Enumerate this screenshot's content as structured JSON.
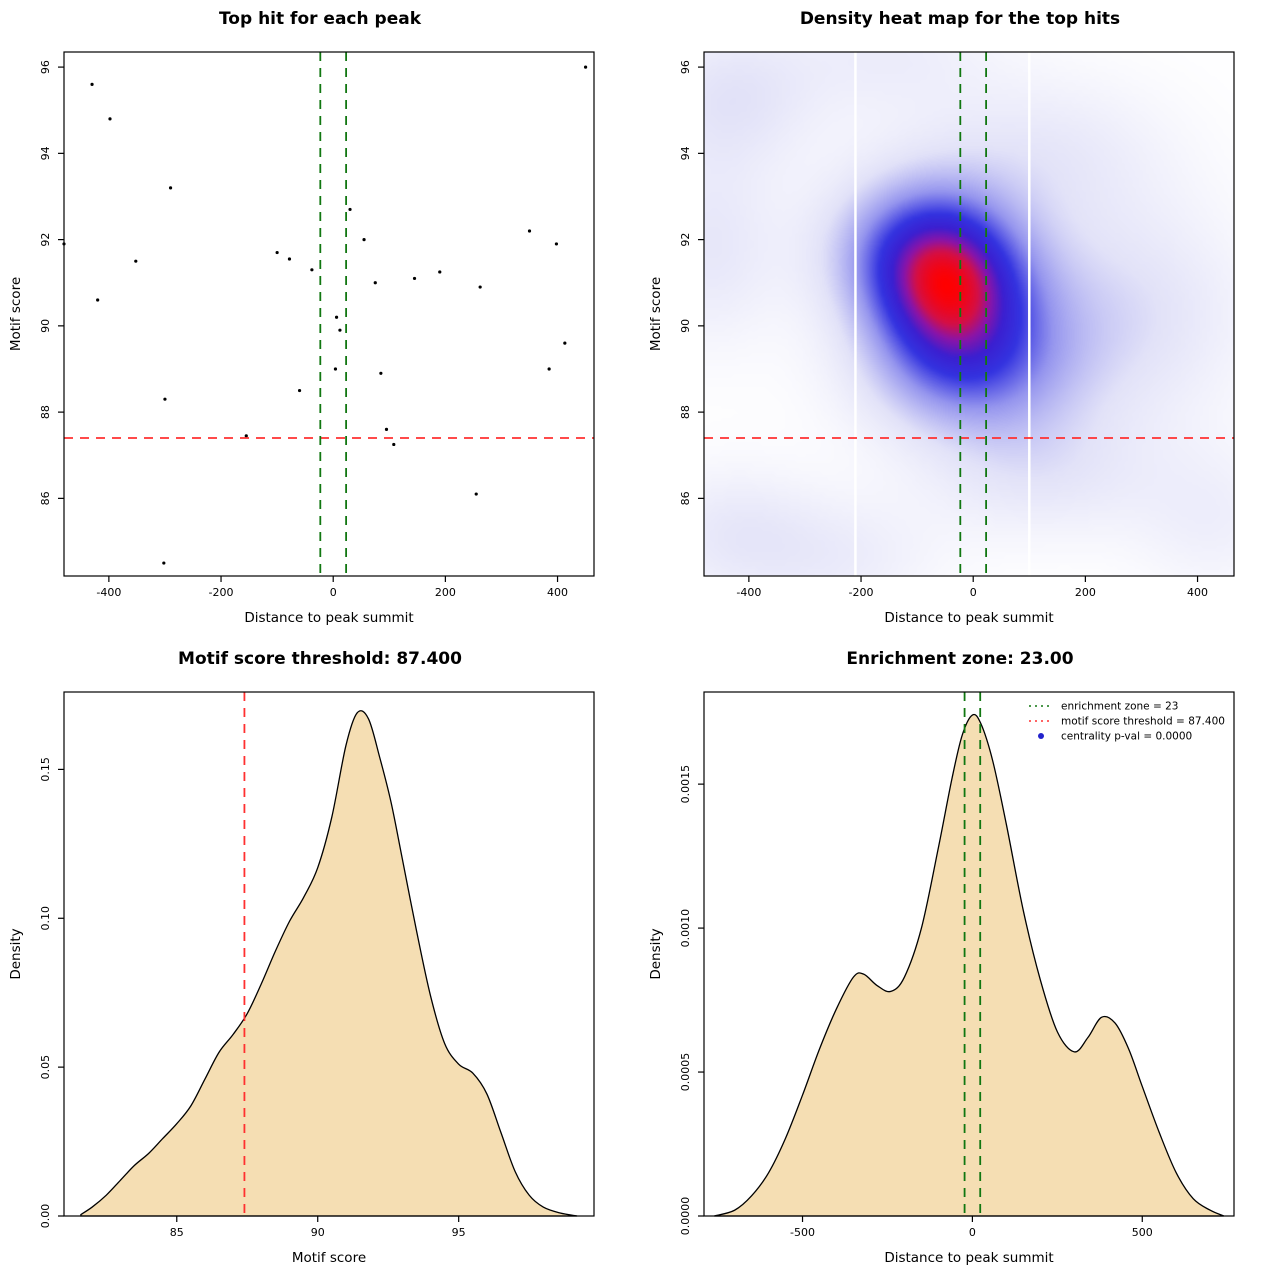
{
  "page": {
    "background": "#ffffff"
  },
  "chart_data": [
    {
      "id": "top-hit-scatter",
      "type": "scatter",
      "title": "Top hit for each peak",
      "xlabel": "Distance to peak summit",
      "ylabel": "Motif score",
      "xlim": [
        -480,
        465
      ],
      "ylim": [
        84.2,
        96.35
      ],
      "xticks": [
        -400,
        -200,
        0,
        200,
        400
      ],
      "yticks": [
        86,
        88,
        90,
        92,
        94,
        96
      ],
      "grid": false,
      "point_color": "#000000",
      "points": [
        [
          -430,
          95.6
        ],
        [
          -398,
          94.8
        ],
        [
          -480,
          91.9
        ],
        [
          -420,
          90.6
        ],
        [
          -352,
          91.5
        ],
        [
          -290,
          93.2
        ],
        [
          -300,
          88.3
        ],
        [
          -302,
          84.5
        ],
        [
          -155,
          87.45
        ],
        [
          -100,
          91.7
        ],
        [
          -78,
          91.55
        ],
        [
          -60,
          88.5
        ],
        [
          -38,
          91.3
        ],
        [
          6,
          90.2
        ],
        [
          12,
          89.9
        ],
        [
          4,
          89.0
        ],
        [
          30,
          92.7
        ],
        [
          55,
          92.0
        ],
        [
          75,
          91.0
        ],
        [
          85,
          88.9
        ],
        [
          95,
          87.6
        ],
        [
          108,
          87.25
        ],
        [
          145,
          91.1
        ],
        [
          190,
          91.25
        ],
        [
          255,
          86.1
        ],
        [
          262,
          90.9
        ],
        [
          350,
          92.2
        ],
        [
          385,
          89.0
        ],
        [
          398,
          91.9
        ],
        [
          413,
          89.6
        ],
        [
          450,
          96.0
        ]
      ],
      "hline": {
        "y": 87.4,
        "color": "#ff3030"
      },
      "vlines": {
        "x": [
          -23,
          23
        ],
        "color": "#117711"
      }
    },
    {
      "id": "density-heatmap",
      "type": "heatmap",
      "title": "Density heat map for the top hits",
      "xlabel": "Distance to peak summit",
      "ylabel": "Motif score",
      "xlim": [
        -480,
        465
      ],
      "ylim": [
        84.2,
        96.35
      ],
      "xticks": [
        -400,
        -200,
        0,
        200,
        400
      ],
      "yticks": [
        86,
        88,
        90,
        92,
        94,
        96
      ],
      "grid": false,
      "colorscale": [
        {
          "t": 0.0,
          "c": "#ffffff"
        },
        {
          "t": 0.2,
          "c": "#e2e2f8"
        },
        {
          "t": 0.42,
          "c": "#9595ee"
        },
        {
          "t": 0.6,
          "c": "#3333e0"
        },
        {
          "t": 0.72,
          "c": "#3b1fd0"
        },
        {
          "t": 0.82,
          "c": "#8a14a8"
        },
        {
          "t": 0.9,
          "c": "#d40f45"
        },
        {
          "t": 1.0,
          "c": "#ff0000"
        }
      ],
      "kernels": [
        {
          "x": -45,
          "y": 91.0,
          "sx": 95,
          "sy": 1.35,
          "a": 1.0
        },
        {
          "x": 20,
          "y": 90.2,
          "sx": 130,
          "sy": 1.6,
          "a": 0.55
        },
        {
          "x": -130,
          "y": 91.8,
          "sx": 110,
          "sy": 1.3,
          "a": 0.6
        },
        {
          "x": -10,
          "y": 88.8,
          "sx": 140,
          "sy": 1.1,
          "a": 0.45
        },
        {
          "x": -430,
          "y": 95.3,
          "sx": 110,
          "sy": 1.2,
          "a": 0.34
        },
        {
          "x": -470,
          "y": 91.8,
          "sx": 90,
          "sy": 1.6,
          "a": 0.3
        },
        {
          "x": -430,
          "y": 85.2,
          "sx": 110,
          "sy": 1.1,
          "a": 0.28
        },
        {
          "x": -230,
          "y": 84.6,
          "sx": 120,
          "sy": 1.0,
          "a": 0.22
        },
        {
          "x": 120,
          "y": 86.6,
          "sx": 150,
          "sy": 1.1,
          "a": 0.3
        },
        {
          "x": 300,
          "y": 90.3,
          "sx": 140,
          "sy": 1.8,
          "a": 0.34
        },
        {
          "x": 120,
          "y": 94.0,
          "sx": 160,
          "sy": 1.3,
          "a": 0.28
        },
        {
          "x": -150,
          "y": 96.3,
          "sx": 130,
          "sy": 1.0,
          "a": 0.22
        },
        {
          "x": 430,
          "y": 85.5,
          "sx": 100,
          "sy": 1.2,
          "a": 0.2
        }
      ],
      "white_columns": [
        -210,
        100
      ],
      "hline": {
        "y": 87.4,
        "color": "#ff3030"
      },
      "vlines": {
        "x": [
          -23,
          23
        ],
        "color": "#117711"
      }
    },
    {
      "id": "motif-score-density",
      "type": "density",
      "title": "Motif score threshold: 87.400",
      "xlabel": "Motif score",
      "ylabel": "Density",
      "xlim": [
        81,
        99.8
      ],
      "ylim": [
        0,
        0.176
      ],
      "xticks": [
        85,
        90,
        95
      ],
      "xtick_labels": [
        "85",
        "90",
        "95"
      ],
      "yticks": [
        0,
        0.05,
        0.1,
        0.15
      ],
      "ytick_labels": [
        "0.00",
        "0.05",
        "0.10",
        "0.15"
      ],
      "grid": false,
      "fill": "#f5deb3",
      "line_color": "#000000",
      "curve": [
        [
          81.6,
          0.0005
        ],
        [
          82.0,
          0.003
        ],
        [
          82.5,
          0.007
        ],
        [
          83.0,
          0.012
        ],
        [
          83.5,
          0.017
        ],
        [
          84.0,
          0.021
        ],
        [
          84.5,
          0.026
        ],
        [
          85.0,
          0.031
        ],
        [
          85.5,
          0.037
        ],
        [
          86.0,
          0.046
        ],
        [
          86.5,
          0.055
        ],
        [
          87.0,
          0.061
        ],
        [
          87.5,
          0.068
        ],
        [
          88.0,
          0.078
        ],
        [
          88.5,
          0.089
        ],
        [
          89.0,
          0.099
        ],
        [
          89.5,
          0.107
        ],
        [
          90.0,
          0.117
        ],
        [
          90.5,
          0.134
        ],
        [
          91.0,
          0.158
        ],
        [
          91.4,
          0.169
        ],
        [
          91.8,
          0.167
        ],
        [
          92.2,
          0.154
        ],
        [
          92.6,
          0.139
        ],
        [
          93.0,
          0.12
        ],
        [
          93.5,
          0.096
        ],
        [
          94.0,
          0.074
        ],
        [
          94.5,
          0.058
        ],
        [
          95.0,
          0.051
        ],
        [
          95.5,
          0.048
        ],
        [
          96.0,
          0.041
        ],
        [
          96.5,
          0.028
        ],
        [
          97.0,
          0.015
        ],
        [
          97.5,
          0.007
        ],
        [
          98.0,
          0.003
        ],
        [
          98.6,
          0.001
        ],
        [
          99.2,
          0.0
        ]
      ],
      "vlines": {
        "x": [
          87.4
        ],
        "color": "#ff3030"
      }
    },
    {
      "id": "enrichment-zone-density",
      "type": "density",
      "title": "Enrichment zone: 23.00",
      "xlabel": "Distance to peak summit",
      "ylabel": "Density",
      "xlim": [
        -790,
        770
      ],
      "ylim": [
        0,
        0.00182
      ],
      "xticks": [
        -500,
        0,
        500
      ],
      "xtick_labels": [
        "-500",
        "0",
        "500"
      ],
      "yticks": [
        0,
        0.0005,
        0.001,
        0.0015
      ],
      "ytick_labels": [
        "0.0000",
        "0.0005",
        "0.0010",
        "0.0015"
      ],
      "grid": false,
      "fill": "#f5deb3",
      "line_color": "#000000",
      "curve": [
        [
          -760,
          0.0
        ],
        [
          -700,
          2e-05
        ],
        [
          -650,
          7e-05
        ],
        [
          -600,
          0.00015
        ],
        [
          -550,
          0.00027
        ],
        [
          -500,
          0.00042
        ],
        [
          -450,
          0.00058
        ],
        [
          -400,
          0.00072
        ],
        [
          -350,
          0.00083
        ],
        [
          -320,
          0.00084
        ],
        [
          -280,
          0.0008
        ],
        [
          -240,
          0.00078
        ],
        [
          -200,
          0.00083
        ],
        [
          -150,
          0.001
        ],
        [
          -100,
          0.00128
        ],
        [
          -60,
          0.00152
        ],
        [
          -30,
          0.00167
        ],
        [
          0,
          0.00174
        ],
        [
          25,
          0.00171
        ],
        [
          60,
          0.00158
        ],
        [
          100,
          0.00136
        ],
        [
          150,
          0.00106
        ],
        [
          200,
          0.00082
        ],
        [
          250,
          0.00064
        ],
        [
          300,
          0.00057
        ],
        [
          340,
          0.00062
        ],
        [
          380,
          0.00069
        ],
        [
          420,
          0.00067
        ],
        [
          460,
          0.00058
        ],
        [
          500,
          0.00045
        ],
        [
          550,
          0.00029
        ],
        [
          600,
          0.00015
        ],
        [
          650,
          6e-05
        ],
        [
          700,
          2e-05
        ],
        [
          740,
          0.0
        ]
      ],
      "vlines": {
        "x": [
          -23,
          23
        ],
        "color": "#117711"
      },
      "legend": {
        "position": "topright",
        "items": [
          {
            "label": "enrichment zone = 23",
            "type": "line",
            "style": "dotted",
            "color": "#117711"
          },
          {
            "label": "motif score threshold = 87.400",
            "type": "line",
            "style": "dotted",
            "color": "#ff3030"
          },
          {
            "label": "centrality p-val = 0.0000",
            "type": "point",
            "color": "#2222cc"
          }
        ]
      }
    }
  ]
}
